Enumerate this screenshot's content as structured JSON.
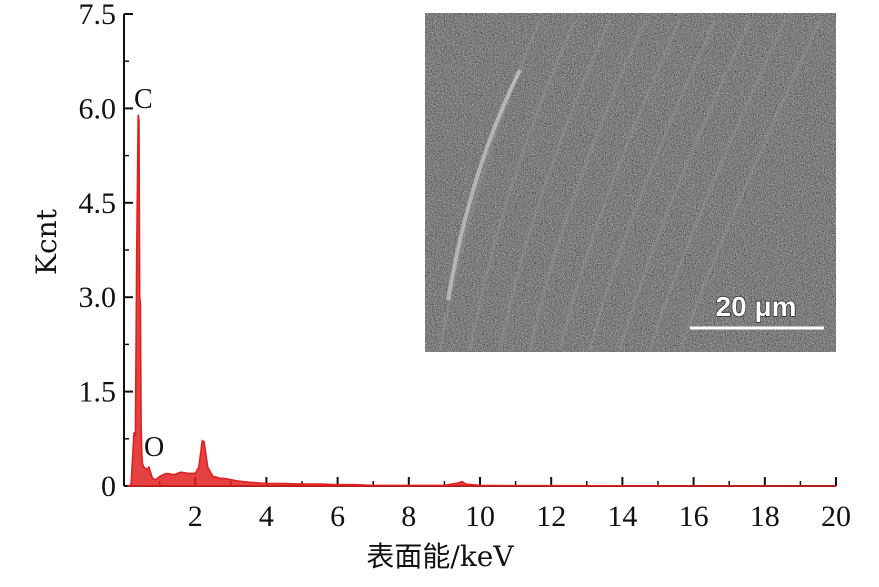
{
  "chart_data": {
    "type": "line",
    "xlabel": "表面能/keV",
    "ylabel": "Kcnt",
    "xlim": [
      0,
      20
    ],
    "ylim": [
      0,
      7.5
    ],
    "x_ticks": [
      2,
      4,
      6,
      8,
      10,
      12,
      14,
      16,
      18,
      20
    ],
    "y_ticks": [
      0,
      1.5,
      3.0,
      4.5,
      6.0,
      7.5
    ],
    "x_tick_labels": [
      "2",
      "4",
      "6",
      "8",
      "10",
      "12",
      "14",
      "16",
      "18",
      "20"
    ],
    "y_tick_labels": [
      "0",
      "1.5",
      "3.0",
      "4.5",
      "6.0",
      "7.5"
    ],
    "grid": false,
    "series_color": "#e02020",
    "series": [
      {
        "x": [
          0.1,
          0.2,
          0.28,
          0.32,
          0.36,
          0.4,
          0.42,
          0.44,
          0.46,
          0.48,
          0.5,
          0.52,
          0.56,
          0.6,
          0.65,
          0.7,
          0.8,
          0.9,
          1.0,
          1.1,
          1.2,
          1.4,
          1.6,
          1.8,
          2.0,
          2.1,
          2.15,
          2.2,
          2.25,
          2.3,
          2.35,
          2.4,
          2.5,
          2.6,
          2.7,
          2.8,
          3.0,
          3.2,
          3.5,
          4.0,
          4.5,
          5.0,
          5.5,
          6.0,
          6.5,
          7.0,
          8.0,
          9.0,
          9.4,
          9.5,
          9.6,
          10.0,
          11.0,
          12.0,
          14.0,
          16.0,
          18.0,
          20.0
        ],
        "y": [
          0,
          0.02,
          0.85,
          0.8,
          3.85,
          5.9,
          5.8,
          3.0,
          2.9,
          1.0,
          0.5,
          0.35,
          0.3,
          0.28,
          0.26,
          0.3,
          0.12,
          0.1,
          0.15,
          0.18,
          0.2,
          0.18,
          0.22,
          0.2,
          0.2,
          0.3,
          0.5,
          0.72,
          0.7,
          0.5,
          0.3,
          0.25,
          0.15,
          0.14,
          0.12,
          0.12,
          0.1,
          0.08,
          0.06,
          0.04,
          0.04,
          0.03,
          0.03,
          0.02,
          0.02,
          0.01,
          0.01,
          0.01,
          0.05,
          0.07,
          0.03,
          0.01,
          0.005,
          0.005,
          0.003,
          0.002,
          0.002,
          0.0
        ]
      }
    ],
    "annotations": [
      {
        "text": "C",
        "x": 0.6,
        "y": 5.9
      },
      {
        "text": "O",
        "x": 0.85,
        "y": 0.55
      }
    ]
  },
  "inset": {
    "scale_bar_label": "20 μm"
  }
}
